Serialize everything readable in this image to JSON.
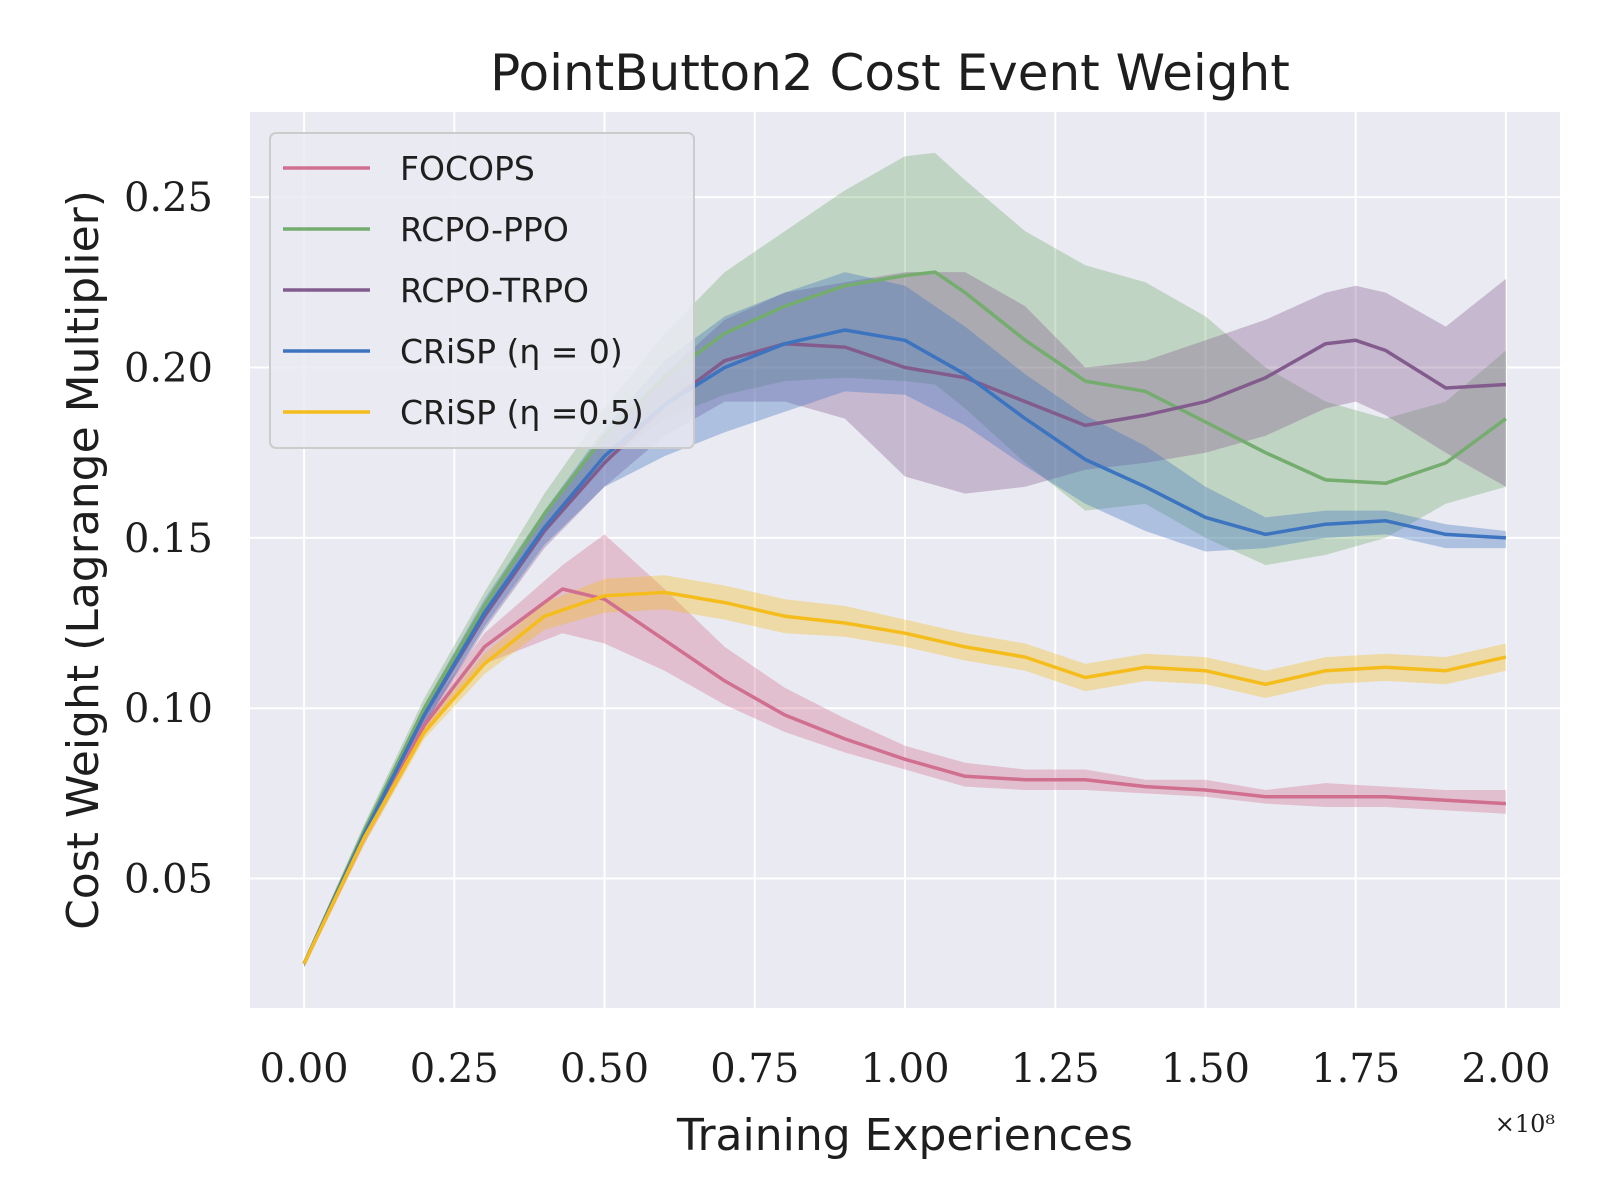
{
  "chart_data": {
    "type": "line",
    "title": "PointButton2 Cost Event Weight",
    "xlabel": "Training Experiences",
    "ylabel": "Cost Weight (Lagrange Multiplier)",
    "x_multiplier": "×10⁸",
    "xlim": [
      -0.09,
      2.09
    ],
    "ylim": [
      0.012,
      0.275
    ],
    "xticks": [
      0.0,
      0.25,
      0.5,
      0.75,
      1.0,
      1.25,
      1.5,
      1.75,
      2.0
    ],
    "xtick_labels": [
      "0.00",
      "0.25",
      "0.50",
      "0.75",
      "1.00",
      "1.25",
      "1.50",
      "1.75",
      "2.00"
    ],
    "yticks": [
      0.05,
      0.1,
      0.15,
      0.2,
      0.25
    ],
    "ytick_labels": [
      "0.05",
      "0.10",
      "0.15",
      "0.20",
      "0.25"
    ],
    "grid": true,
    "legend_position": "top-left",
    "background": "#eaeaf2",
    "series": [
      {
        "name": "FOCOPS",
        "color": "#d16f8f",
        "x": [
          0.0,
          0.1,
          0.2,
          0.3,
          0.43,
          0.5,
          0.6,
          0.7,
          0.8,
          0.9,
          1.0,
          1.1,
          1.2,
          1.3,
          1.4,
          1.5,
          1.6,
          1.7,
          1.8,
          1.9,
          2.0
        ],
        "y": [
          0.025,
          0.062,
          0.095,
          0.118,
          0.135,
          0.132,
          0.12,
          0.108,
          0.098,
          0.091,
          0.085,
          0.08,
          0.079,
          0.079,
          0.077,
          0.076,
          0.074,
          0.074,
          0.074,
          0.073,
          0.072
        ],
        "lower": [
          0.024,
          0.06,
          0.092,
          0.113,
          0.122,
          0.119,
          0.111,
          0.101,
          0.093,
          0.087,
          0.082,
          0.077,
          0.076,
          0.076,
          0.075,
          0.074,
          0.072,
          0.071,
          0.071,
          0.07,
          0.069
        ],
        "upper": [
          0.026,
          0.064,
          0.098,
          0.122,
          0.142,
          0.151,
          0.135,
          0.118,
          0.106,
          0.097,
          0.089,
          0.084,
          0.082,
          0.082,
          0.079,
          0.079,
          0.076,
          0.078,
          0.077,
          0.076,
          0.076
        ]
      },
      {
        "name": "RCPO-PPO",
        "color": "#74ad6e",
        "x": [
          0.0,
          0.1,
          0.2,
          0.3,
          0.4,
          0.5,
          0.6,
          0.7,
          0.8,
          0.9,
          1.0,
          1.05,
          1.1,
          1.2,
          1.3,
          1.4,
          1.5,
          1.6,
          1.7,
          1.8,
          1.9,
          2.0
        ],
        "y": [
          0.025,
          0.064,
          0.1,
          0.13,
          0.157,
          0.18,
          0.197,
          0.21,
          0.218,
          0.224,
          0.227,
          0.228,
          0.222,
          0.208,
          0.196,
          0.193,
          0.184,
          0.175,
          0.167,
          0.166,
          0.172,
          0.185
        ],
        "lower": [
          0.024,
          0.062,
          0.097,
          0.126,
          0.152,
          0.172,
          0.185,
          0.192,
          0.196,
          0.197,
          0.196,
          0.195,
          0.188,
          0.172,
          0.158,
          0.16,
          0.15,
          0.142,
          0.145,
          0.15,
          0.16,
          0.165
        ],
        "upper": [
          0.026,
          0.066,
          0.103,
          0.134,
          0.163,
          0.188,
          0.21,
          0.228,
          0.24,
          0.252,
          0.262,
          0.263,
          0.255,
          0.24,
          0.23,
          0.225,
          0.215,
          0.2,
          0.19,
          0.185,
          0.19,
          0.205
        ]
      },
      {
        "name": "RCPO-TRPO",
        "color": "#835c8e",
        "x": [
          0.0,
          0.1,
          0.2,
          0.3,
          0.4,
          0.5,
          0.6,
          0.7,
          0.8,
          0.9,
          1.0,
          1.1,
          1.2,
          1.3,
          1.4,
          1.5,
          1.6,
          1.7,
          1.75,
          1.8,
          1.9,
          2.0
        ],
        "y": [
          0.025,
          0.063,
          0.098,
          0.127,
          0.152,
          0.172,
          0.189,
          0.202,
          0.207,
          0.206,
          0.2,
          0.197,
          0.19,
          0.183,
          0.186,
          0.19,
          0.197,
          0.207,
          0.208,
          0.205,
          0.194,
          0.195
        ],
        "lower": [
          0.024,
          0.061,
          0.095,
          0.123,
          0.147,
          0.165,
          0.18,
          0.19,
          0.19,
          0.185,
          0.168,
          0.163,
          0.165,
          0.17,
          0.172,
          0.175,
          0.18,
          0.188,
          0.19,
          0.186,
          0.175,
          0.165
        ],
        "upper": [
          0.026,
          0.065,
          0.101,
          0.131,
          0.157,
          0.179,
          0.198,
          0.214,
          0.222,
          0.225,
          0.228,
          0.228,
          0.218,
          0.2,
          0.202,
          0.208,
          0.214,
          0.222,
          0.224,
          0.222,
          0.212,
          0.226
        ]
      },
      {
        "name": "CRiSP (η = 0)",
        "color": "#3c74c0",
        "x": [
          0.0,
          0.1,
          0.2,
          0.3,
          0.4,
          0.5,
          0.6,
          0.7,
          0.8,
          0.9,
          1.0,
          1.1,
          1.2,
          1.3,
          1.4,
          1.5,
          1.6,
          1.7,
          1.8,
          1.9,
          2.0
        ],
        "y": [
          0.025,
          0.063,
          0.098,
          0.128,
          0.153,
          0.174,
          0.189,
          0.2,
          0.207,
          0.211,
          0.208,
          0.198,
          0.185,
          0.173,
          0.165,
          0.156,
          0.151,
          0.154,
          0.155,
          0.151,
          0.15
        ],
        "lower": [
          0.024,
          0.061,
          0.095,
          0.124,
          0.148,
          0.165,
          0.174,
          0.181,
          0.187,
          0.193,
          0.192,
          0.183,
          0.171,
          0.16,
          0.152,
          0.146,
          0.147,
          0.15,
          0.151,
          0.147,
          0.147
        ],
        "upper": [
          0.026,
          0.065,
          0.101,
          0.132,
          0.158,
          0.182,
          0.202,
          0.215,
          0.222,
          0.228,
          0.224,
          0.212,
          0.198,
          0.186,
          0.177,
          0.165,
          0.156,
          0.158,
          0.158,
          0.154,
          0.152
        ]
      },
      {
        "name": "CRiSP (η =0.5)",
        "color": "#f5bd1b",
        "x": [
          0.0,
          0.1,
          0.2,
          0.3,
          0.4,
          0.5,
          0.6,
          0.7,
          0.8,
          0.9,
          1.0,
          1.1,
          1.2,
          1.3,
          1.4,
          1.5,
          1.6,
          1.7,
          1.8,
          1.9,
          2.0
        ],
        "y": [
          0.025,
          0.062,
          0.093,
          0.113,
          0.127,
          0.133,
          0.134,
          0.131,
          0.127,
          0.125,
          0.122,
          0.118,
          0.115,
          0.109,
          0.112,
          0.111,
          0.107,
          0.111,
          0.112,
          0.111,
          0.115
        ],
        "lower": [
          0.024,
          0.06,
          0.091,
          0.11,
          0.123,
          0.128,
          0.129,
          0.126,
          0.122,
          0.121,
          0.118,
          0.114,
          0.111,
          0.105,
          0.108,
          0.107,
          0.103,
          0.107,
          0.108,
          0.107,
          0.111
        ],
        "upper": [
          0.026,
          0.064,
          0.095,
          0.116,
          0.131,
          0.138,
          0.139,
          0.136,
          0.132,
          0.13,
          0.126,
          0.122,
          0.119,
          0.113,
          0.116,
          0.115,
          0.111,
          0.115,
          0.116,
          0.115,
          0.119
        ]
      }
    ]
  }
}
